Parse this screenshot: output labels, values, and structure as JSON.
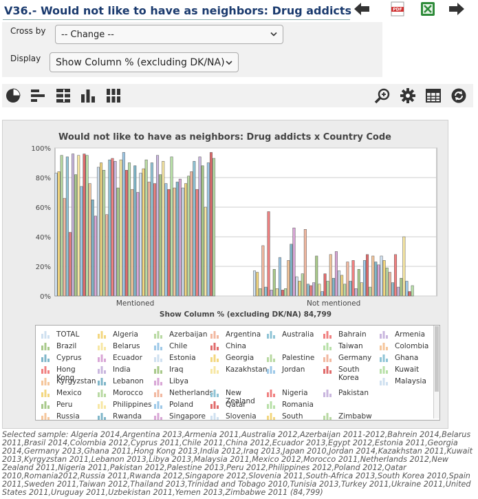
{
  "header": {
    "title": "V36.- Would not like to have as neighbors: Drug addicts"
  },
  "controls": {
    "cross_by_label": "Cross by",
    "cross_by_value": "-- Change --",
    "display_label": "Display",
    "display_value": "Show Column % (excluding DK/NA)"
  },
  "toolbar": {
    "left_icons": [
      "pie-chart-icon",
      "bar-chart-icon",
      "stacked-bar-icon",
      "column-chart-icon",
      "stacked-column-icon"
    ],
    "right_icons": [
      "zoom-icon",
      "settings-icon",
      "table-icon",
      "refresh-icon"
    ]
  },
  "chart_data": {
    "type": "bar",
    "title": "Would not like to have as neighbors: Drug addicts x Country Code",
    "xlabel": "Show Column % (excluding DK/NA) 84,799",
    "ylabel": "",
    "ylim": [
      0,
      100
    ],
    "y_ticks": [
      "0%",
      "20%",
      "40%",
      "60%",
      "80%",
      "100%"
    ],
    "categories": [
      "Mentioned",
      "Not mentioned"
    ],
    "series": [
      {
        "name": "TOTAL",
        "values": [
          83,
          17
        ]
      },
      {
        "name": "Algeria",
        "values": [
          84,
          16
        ]
      },
      {
        "name": "Azerbaijan",
        "values": [
          95,
          5
        ]
      },
      {
        "name": "Argentina",
        "values": [
          66,
          34
        ]
      },
      {
        "name": "Australia",
        "values": [
          94,
          6
        ]
      },
      {
        "name": "Bahrain",
        "values": [
          43,
          57
        ]
      },
      {
        "name": "Armenia",
        "values": [
          96,
          4
        ]
      },
      {
        "name": "Brazil",
        "values": [
          82,
          18
        ]
      },
      {
        "name": "Belarus",
        "values": [
          95,
          5
        ]
      },
      {
        "name": "Chile",
        "values": [
          74,
          26
        ]
      },
      {
        "name": "China",
        "values": [
          96,
          4
        ]
      },
      {
        "name": "Palestine",
        "values": [
          95,
          5
        ]
      },
      {
        "name": "Colombia",
        "values": [
          76,
          24
        ]
      },
      {
        "name": "Cyprus",
        "values": [
          65,
          35
        ]
      },
      {
        "name": "Ecuador",
        "values": [
          54,
          46
        ]
      },
      {
        "name": "Estonia",
        "values": [
          87,
          13
        ]
      },
      {
        "name": "Georgia",
        "values": [
          90,
          10
        ]
      },
      {
        "name": "Germany",
        "values": [
          85,
          15
        ]
      },
      {
        "name": "Ghana",
        "values": [
          55,
          45
        ]
      },
      {
        "name": "Hong Kong",
        "values": [
          92,
          8
        ]
      },
      {
        "name": "India",
        "values": [
          93,
          7
        ]
      },
      {
        "name": "Iraq",
        "values": [
          91,
          9
        ]
      },
      {
        "name": "Jordan",
        "values": [
          73,
          27
        ]
      },
      {
        "name": "Kazakhstan",
        "values": [
          92,
          8
        ]
      },
      {
        "name": "South Korea",
        "values": [
          97,
          3
        ]
      },
      {
        "name": "Kuwait",
        "values": [
          85,
          15
        ]
      },
      {
        "name": "Kyrgyzstan",
        "values": [
          90,
          10
        ]
      },
      {
        "name": "Lebanon",
        "values": [
          72,
          28
        ]
      },
      {
        "name": "Libya",
        "values": [
          88,
          12
        ]
      },
      {
        "name": "Malaysia",
        "values": [
          70,
          30
        ]
      },
      {
        "name": "Mexico",
        "values": [
          83,
          17
        ]
      },
      {
        "name": "Morocco",
        "values": [
          86,
          14
        ]
      },
      {
        "name": "Netherlands",
        "values": [
          92,
          8
        ]
      },
      {
        "name": "New Zealand",
        "values": [
          77,
          23
        ]
      },
      {
        "name": "Nigeria",
        "values": [
          90,
          10
        ]
      },
      {
        "name": "Pakistan",
        "values": [
          76,
          24
        ]
      },
      {
        "name": "Peru",
        "values": [
          95,
          5
        ]
      },
      {
        "name": "Philippines",
        "values": [
          82,
          18
        ]
      },
      {
        "name": "Poland",
        "values": [
          91,
          9
        ]
      },
      {
        "name": "Qatar",
        "values": [
          76,
          24
        ]
      },
      {
        "name": "Romania",
        "values": [
          72,
          28
        ]
      },
      {
        "name": "Russia",
        "values": [
          94,
          6
        ]
      },
      {
        "name": "Rwanda",
        "values": [
          73,
          27
        ]
      },
      {
        "name": "Singapore",
        "values": [
          77,
          23
        ]
      },
      {
        "name": "Slovenia",
        "values": [
          79,
          21
        ]
      },
      {
        "name": "South Africa",
        "values": [
          73,
          27
        ]
      },
      {
        "name": "Spain",
        "values": [
          76,
          24
        ]
      },
      {
        "name": "Sweden",
        "values": [
          81,
          19
        ]
      },
      {
        "name": "Taiwan",
        "values": [
          84,
          16
        ]
      },
      {
        "name": "Thailand",
        "values": [
          91,
          9
        ]
      },
      {
        "name": "Trinidad and Tobago",
        "values": [
          72,
          28
        ]
      },
      {
        "name": "Tunisia",
        "values": [
          94,
          6
        ]
      },
      {
        "name": "Turkey",
        "values": [
          88,
          12
        ]
      },
      {
        "name": "Ukraine",
        "values": [
          60,
          40
        ]
      },
      {
        "name": "United States",
        "values": [
          90,
          10
        ]
      },
      {
        "name": "Uruguay",
        "values": [
          97,
          3
        ]
      },
      {
        "name": "Uzbekistan",
        "values": [
          93,
          7
        ]
      }
    ],
    "legend": [
      "TOTAL",
      "Algeria",
      "Azerbaijan",
      "Argentina",
      "Australia",
      "Bahrain",
      "Armenia",
      "Brazil",
      "Belarus",
      "Chile",
      "China",
      "Palestine",
      "Taiwan",
      "Colombia",
      "Cyprus",
      "Ecuador",
      "Estonia",
      "Georgia",
      "Germany",
      "Ghana",
      "Hong Kong",
      "India",
      "Iraq",
      "Kazakhstan",
      "Jordan",
      "South Korea",
      "Kuwait",
      "Kyrgyzstan",
      "Lebanon",
      "Libya",
      "Malaysia",
      "Mexico",
      "Morocco",
      "Netherlands",
      "New Zealand",
      "Nigeria",
      "Pakistan",
      "Peru",
      "Philippines",
      "Poland",
      "Qatar",
      "Romania",
      "Russia",
      "Rwanda",
      "Singapore",
      "Slovenia",
      "South",
      "Zimbabw"
    ],
    "legend_placement": "bottom",
    "grid": true
  },
  "legend_labels": [
    [
      "TOTAL",
      "Algeria",
      "Azerbaijan",
      "Argentina",
      "Australia",
      "Bahrain",
      "Armenia"
    ],
    [
      "Brazil",
      "Belarus",
      "Chile",
      "China",
      "Taiwan",
      "Colombia"
    ],
    [
      "Cyprus",
      "Ecuador",
      "Estonia",
      "Georgia",
      "Palestine",
      "Germany",
      "Ghana"
    ],
    [
      "Hong Kong",
      "India",
      "Iraq",
      "Kazakhstan",
      "Jordan",
      "South Korea",
      "Kuwait"
    ],
    [
      "Kyrgyzstan",
      "Lebanon",
      "Libya",
      "Malaysia"
    ],
    [
      "Mexico",
      "Morocco",
      "Netherlands",
      "New Zealand",
      "Nigeria",
      "Pakistan"
    ],
    [
      "Peru",
      "Philippines",
      "Poland",
      "Qatar",
      "Romania"
    ],
    [
      "Russia",
      "Rwanda",
      "Singapore",
      "Slovenia",
      "South",
      "Zimbabw"
    ]
  ],
  "colors": {
    "bar_palette": [
      "#cfe0f0",
      "#f3d77f",
      "#b8d9a2",
      "#f2b8a0",
      "#8fc4d6",
      "#f08080",
      "#c9b6de",
      "#a8c98a",
      "#f7e7a3",
      "#9ec9e8",
      "#e06b6b",
      "#b8e0a8",
      "#f5c69b",
      "#7fb6c9",
      "#d9a6d6"
    ],
    "title_blue": "#1a3a6e"
  },
  "footer": {
    "note": "Selected sample: Algeria 2014,Argentina 2013,Armenia 2011,Australia 2012,Azerbaijan 2011-2012,Bahrein 2014,Belarus 2011,Brasil 2014,Colombia 2012,Cyprus 2011,Chile 2011,China 2012,Ecuador 2013,Egypt 2012,Estonia 2011,Georgia 2014,Germany 2013,Ghana 2011,Hong Kong 2013,India 2012,Iraq 2013,Japan 2010,Jordan 2014,Kazakhstan 2011,Kuwait 2013,Kyrgyzstan 2011,Lebanon 2013,Libya 2013,Malaysia 2011,Mexico 2012,Morocco 2011,Netherlands 2012,New Zealand 2011,Nigeria 2011,Pakistan 2012,Palestine 2013,Peru 2012,Philippines 2012,Poland 2012,Qatar 2010,Romania2012,Russia 2011,Rwanda 2012,Singapore 2012,Slovenia 2011,South-Africa 2013,South Korea 2010,Spain 2011,Sweden 2011,Taiwan 2012,Thailand 2013,Trinidad and Tobago 2010,Tunisia 2013,Turkey 2011,Ukraine 2011,United States 2011,Uruguay 2011,Uzbekistan 2011,Yemen 2013,Zimbabwe 2011 (84,799)"
  }
}
